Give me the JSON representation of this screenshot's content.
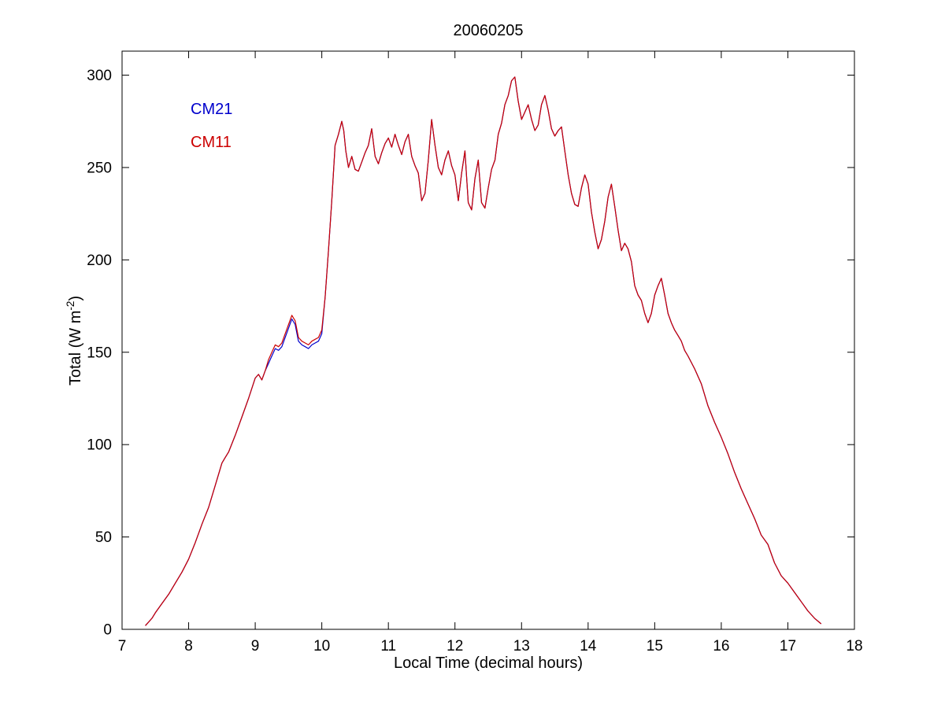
{
  "chart_data": {
    "type": "line",
    "title": "20060205",
    "xlabel": "Local Time (decimal hours)",
    "ylabel": {
      "prefix": "Total (W m",
      "exponent": "-2",
      "suffix": ")"
    },
    "xlim": [
      7,
      18
    ],
    "ylim": [
      0,
      313
    ],
    "xticks": [
      7,
      8,
      9,
      10,
      11,
      12,
      13,
      14,
      15,
      16,
      17,
      18
    ],
    "yticks": [
      0,
      50,
      100,
      150,
      200,
      250,
      300
    ],
    "grid": false,
    "legend_position": "upper-left-inside",
    "axis_color": "#000000",
    "x": [
      7.35,
      7.4,
      7.45,
      7.5,
      7.6,
      7.7,
      7.8,
      7.9,
      8.0,
      8.1,
      8.2,
      8.3,
      8.4,
      8.5,
      8.55,
      8.6,
      8.7,
      8.8,
      8.9,
      9.0,
      9.05,
      9.1,
      9.15,
      9.2,
      9.25,
      9.3,
      9.35,
      9.4,
      9.45,
      9.5,
      9.55,
      9.6,
      9.65,
      9.7,
      9.75,
      9.8,
      9.85,
      9.9,
      9.95,
      10.0,
      10.05,
      10.1,
      10.15,
      10.2,
      10.25,
      10.3,
      10.33,
      10.36,
      10.4,
      10.45,
      10.5,
      10.55,
      10.6,
      10.65,
      10.7,
      10.75,
      10.8,
      10.85,
      10.9,
      10.95,
      11.0,
      11.05,
      11.1,
      11.15,
      11.2,
      11.25,
      11.3,
      11.35,
      11.4,
      11.45,
      11.5,
      11.55,
      11.6,
      11.65,
      11.7,
      11.75,
      11.8,
      11.85,
      11.9,
      11.95,
      12.0,
      12.05,
      12.1,
      12.15,
      12.2,
      12.25,
      12.3,
      12.35,
      12.4,
      12.45,
      12.5,
      12.55,
      12.6,
      12.65,
      12.7,
      12.75,
      12.8,
      12.85,
      12.9,
      12.95,
      13.0,
      13.05,
      13.1,
      13.15,
      13.2,
      13.25,
      13.3,
      13.35,
      13.4,
      13.45,
      13.5,
      13.55,
      13.6,
      13.65,
      13.7,
      13.75,
      13.8,
      13.85,
      13.9,
      13.95,
      14.0,
      14.05,
      14.1,
      14.15,
      14.2,
      14.25,
      14.3,
      14.35,
      14.4,
      14.45,
      14.5,
      14.55,
      14.6,
      14.65,
      14.7,
      14.75,
      14.8,
      14.85,
      14.9,
      14.95,
      15.0,
      15.05,
      15.1,
      15.15,
      15.2,
      15.25,
      15.3,
      15.35,
      15.4,
      15.45,
      15.5,
      15.6,
      15.7,
      15.8,
      15.9,
      16.0,
      16.1,
      16.2,
      16.3,
      16.4,
      16.5,
      16.6,
      16.7,
      16.8,
      16.9,
      17.0,
      17.1,
      17.2,
      17.3,
      17.4,
      17.5
    ],
    "series": [
      {
        "name": "CM21",
        "color": "#0000CC",
        "values": [
          2,
          4,
          6,
          9,
          14,
          19,
          25,
          31,
          38,
          47,
          57,
          66,
          78,
          90,
          93,
          96,
          105,
          115,
          125,
          136,
          138,
          135,
          140,
          144,
          148,
          152,
          151,
          153,
          158,
          163,
          168,
          165,
          156,
          154,
          153,
          152,
          154,
          155,
          156,
          160,
          180,
          205,
          232,
          262,
          268,
          275,
          270,
          259,
          250,
          256,
          249,
          248,
          253,
          258,
          262,
          271,
          256,
          252,
          258,
          263,
          266,
          261,
          268,
          262,
          257,
          264,
          268,
          256,
          251,
          247,
          232,
          236,
          254,
          276,
          262,
          250,
          246,
          254,
          259,
          251,
          246,
          232,
          247,
          259,
          231,
          227,
          244,
          254,
          231,
          228,
          239,
          249,
          254,
          268,
          274,
          284,
          289,
          297,
          299,
          286,
          276,
          280,
          284,
          276,
          270,
          273,
          284,
          289,
          281,
          271,
          267,
          270,
          272,
          259,
          246,
          236,
          230,
          229,
          239,
          246,
          241,
          226,
          215,
          206,
          211,
          221,
          234,
          241,
          229,
          216,
          205,
          209,
          206,
          199,
          186,
          181,
          178,
          171,
          166,
          171,
          181,
          186,
          190,
          181,
          171,
          166,
          162,
          159,
          156,
          151,
          148,
          141,
          133,
          121,
          112,
          104,
          95,
          85,
          76,
          68,
          60,
          51,
          46,
          36,
          29,
          25,
          20,
          15,
          10,
          6,
          3
        ]
      },
      {
        "name": "CM11",
        "color": "#CC0000",
        "values": [
          2,
          4,
          6,
          9,
          14,
          19,
          25,
          31,
          38,
          47,
          57,
          66,
          78,
          90,
          93,
          96,
          105,
          115,
          125,
          136,
          138,
          135,
          140,
          146,
          150,
          154,
          153,
          155,
          160,
          165,
          170,
          167,
          158,
          156,
          155,
          154,
          156,
          157,
          158,
          162,
          180,
          205,
          232,
          262,
          268,
          275,
          270,
          259,
          250,
          256,
          249,
          248,
          253,
          258,
          262,
          271,
          256,
          252,
          258,
          263,
          266,
          261,
          268,
          262,
          257,
          264,
          268,
          256,
          251,
          247,
          232,
          236,
          254,
          276,
          262,
          250,
          246,
          254,
          259,
          251,
          246,
          232,
          247,
          259,
          231,
          227,
          244,
          254,
          231,
          228,
          239,
          249,
          254,
          268,
          274,
          284,
          289,
          297,
          299,
          286,
          276,
          280,
          284,
          276,
          270,
          273,
          284,
          289,
          281,
          271,
          267,
          270,
          272,
          259,
          246,
          236,
          230,
          229,
          239,
          246,
          241,
          226,
          215,
          206,
          211,
          221,
          234,
          241,
          229,
          216,
          205,
          209,
          206,
          199,
          186,
          181,
          178,
          171,
          166,
          171,
          181,
          186,
          190,
          181,
          171,
          166,
          162,
          159,
          156,
          151,
          148,
          141,
          133,
          121,
          112,
          104,
          95,
          85,
          76,
          68,
          60,
          51,
          46,
          36,
          29,
          25,
          20,
          15,
          10,
          6,
          3
        ]
      }
    ]
  }
}
